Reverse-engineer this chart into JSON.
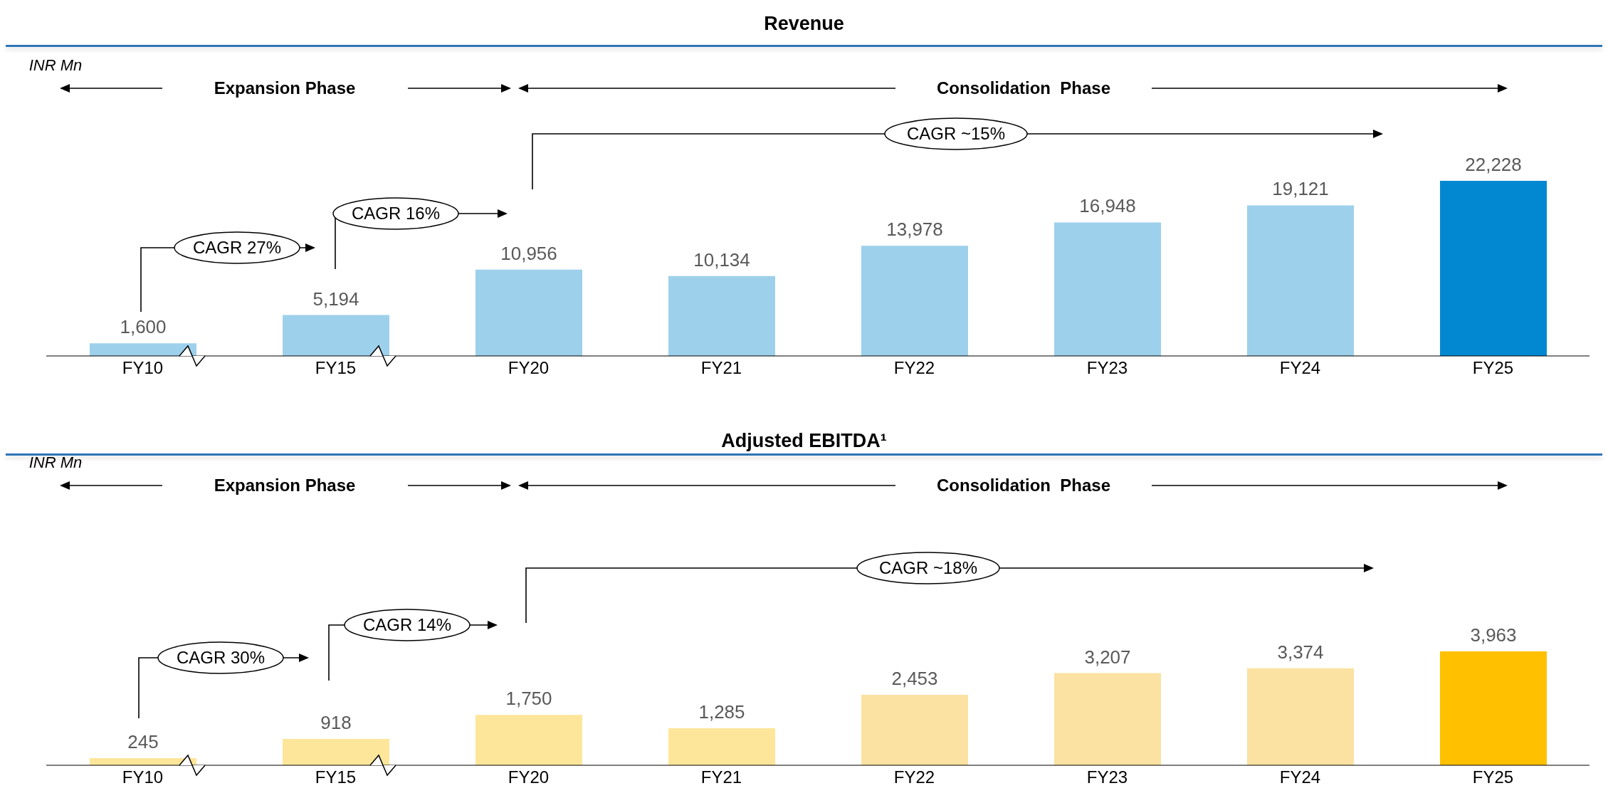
{
  "chart_data": [
    {
      "type": "bar",
      "title": "Revenue",
      "categories": [
        "FY10",
        "FY15",
        "FY20",
        "FY21",
        "FY22",
        "FY23",
        "FY24",
        "FY25"
      ],
      "values": [
        1600,
        5194,
        10956,
        10134,
        13978,
        16948,
        19121,
        22228
      ],
      "colors": [
        "#9dd0eb",
        "#9dd0eb",
        "#9dd0eb",
        "#9dd0eb",
        "#9dd0eb",
        "#9dd0eb",
        "#9dd0eb",
        "#0288d1"
      ],
      "value_labels": [
        "1,600",
        "5,194",
        "10,956",
        "10,134",
        "13,978",
        "16,948",
        "19,121",
        "22,228"
      ],
      "annotations": [
        "INR Mn",
        "Expansion Phase",
        "Consolidation  Phase",
        "CAGR 27%",
        "CAGR 16%",
        "CAGR ~15%"
      ]
    },
    {
      "type": "bar",
      "title": "Adjusted EBITDA¹",
      "categories": [
        "FY10",
        "FY15",
        "FY20",
        "FY21",
        "FY22",
        "FY23",
        "FY24",
        "FY25"
      ],
      "values": [
        245,
        918,
        1750,
        1285,
        2453,
        3207,
        3374,
        3963
      ],
      "colors": [
        "#fde699",
        "#fde699",
        "#fde699",
        "#fde699",
        "#fbe2a2",
        "#fbe2a2",
        "#fbe2a2",
        "#ffc000"
      ],
      "value_labels": [
        "245",
        "918",
        "1,750",
        "1,285",
        "2,453",
        "3,207",
        "3,374",
        "3,963"
      ],
      "annotations": [
        "INR Mn",
        "Expansion Phase",
        "Consolidation  Phase",
        "CAGR 30%",
        "CAGR 14%",
        "CAGR ~18%"
      ]
    }
  ]
}
